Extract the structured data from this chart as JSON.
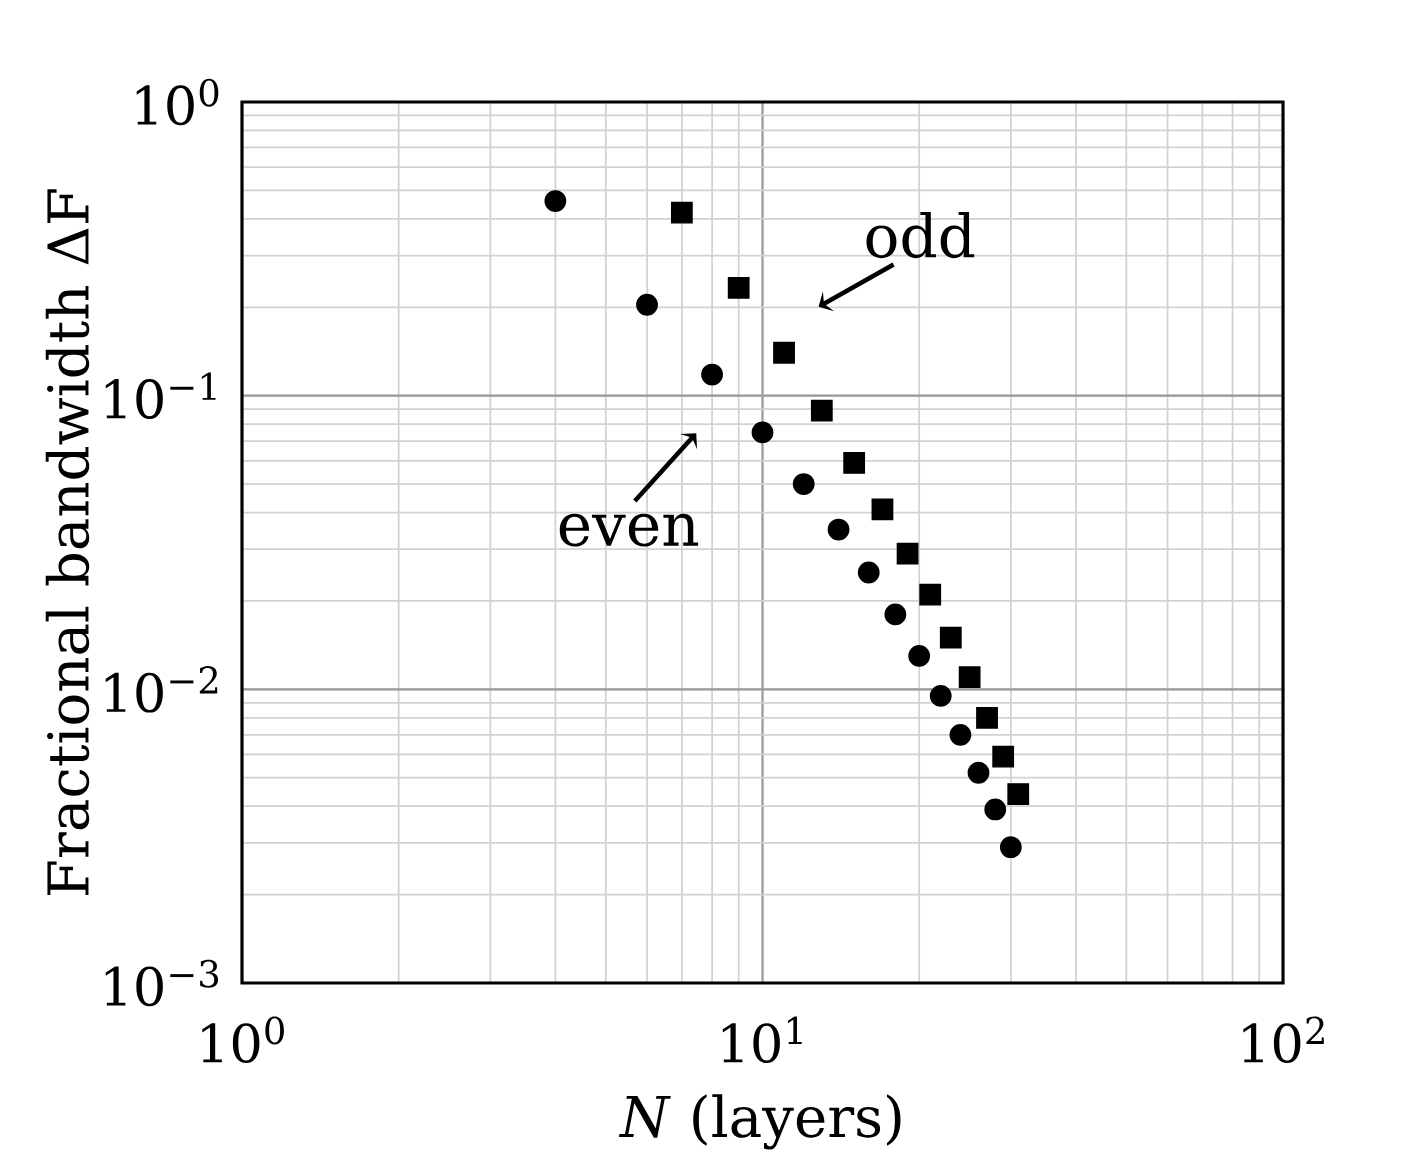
{
  "chart_data": {
    "type": "scatter",
    "xlabel": "*N* (layers)",
    "ylabel": "Fractional bandwidth ΔF",
    "log": "xy",
    "grid": true,
    "xlim": [
      1,
      100
    ],
    "ylim": [
      0.001,
      1
    ],
    "xticks": [
      {
        "value": 1,
        "label": "10$^{0}$"
      },
      {
        "value": 10,
        "label": "10$^{1}$"
      },
      {
        "value": 100,
        "label": "10$^{2}$"
      }
    ],
    "yticks": [
      {
        "value": 0.001,
        "label": "10$^{−3}$"
      },
      {
        "value": 0.01,
        "label": "10$^{−2}$"
      },
      {
        "value": 0.1,
        "label": "10$^{−1}$"
      },
      {
        "value": 1,
        "label": "10$^{0}$"
      }
    ],
    "series": [
      {
        "color": "#000000",
        "marker": "circle",
        "x": [
          4,
          6,
          8,
          10,
          12,
          14,
          16,
          18,
          20,
          22,
          24,
          26,
          28,
          30
        ],
        "values": [
          0.46,
          0.204,
          0.118,
          0.075,
          0.05,
          0.035,
          0.025,
          0.018,
          0.013,
          0.0095,
          0.007,
          0.0052,
          0.0039,
          0.0029
        ]
      },
      {
        "color": "#000000",
        "marker": "square",
        "x": [
          7,
          9,
          11,
          13,
          15,
          17,
          19,
          21,
          23,
          25,
          27,
          29,
          31
        ],
        "values": [
          0.42,
          0.233,
          0.14,
          0.089,
          0.059,
          0.041,
          0.029,
          0.021,
          0.015,
          0.011,
          0.008,
          0.0059,
          0.0044
        ]
      }
    ],
    "annotations": [
      "odd",
      "even"
    ]
  }
}
